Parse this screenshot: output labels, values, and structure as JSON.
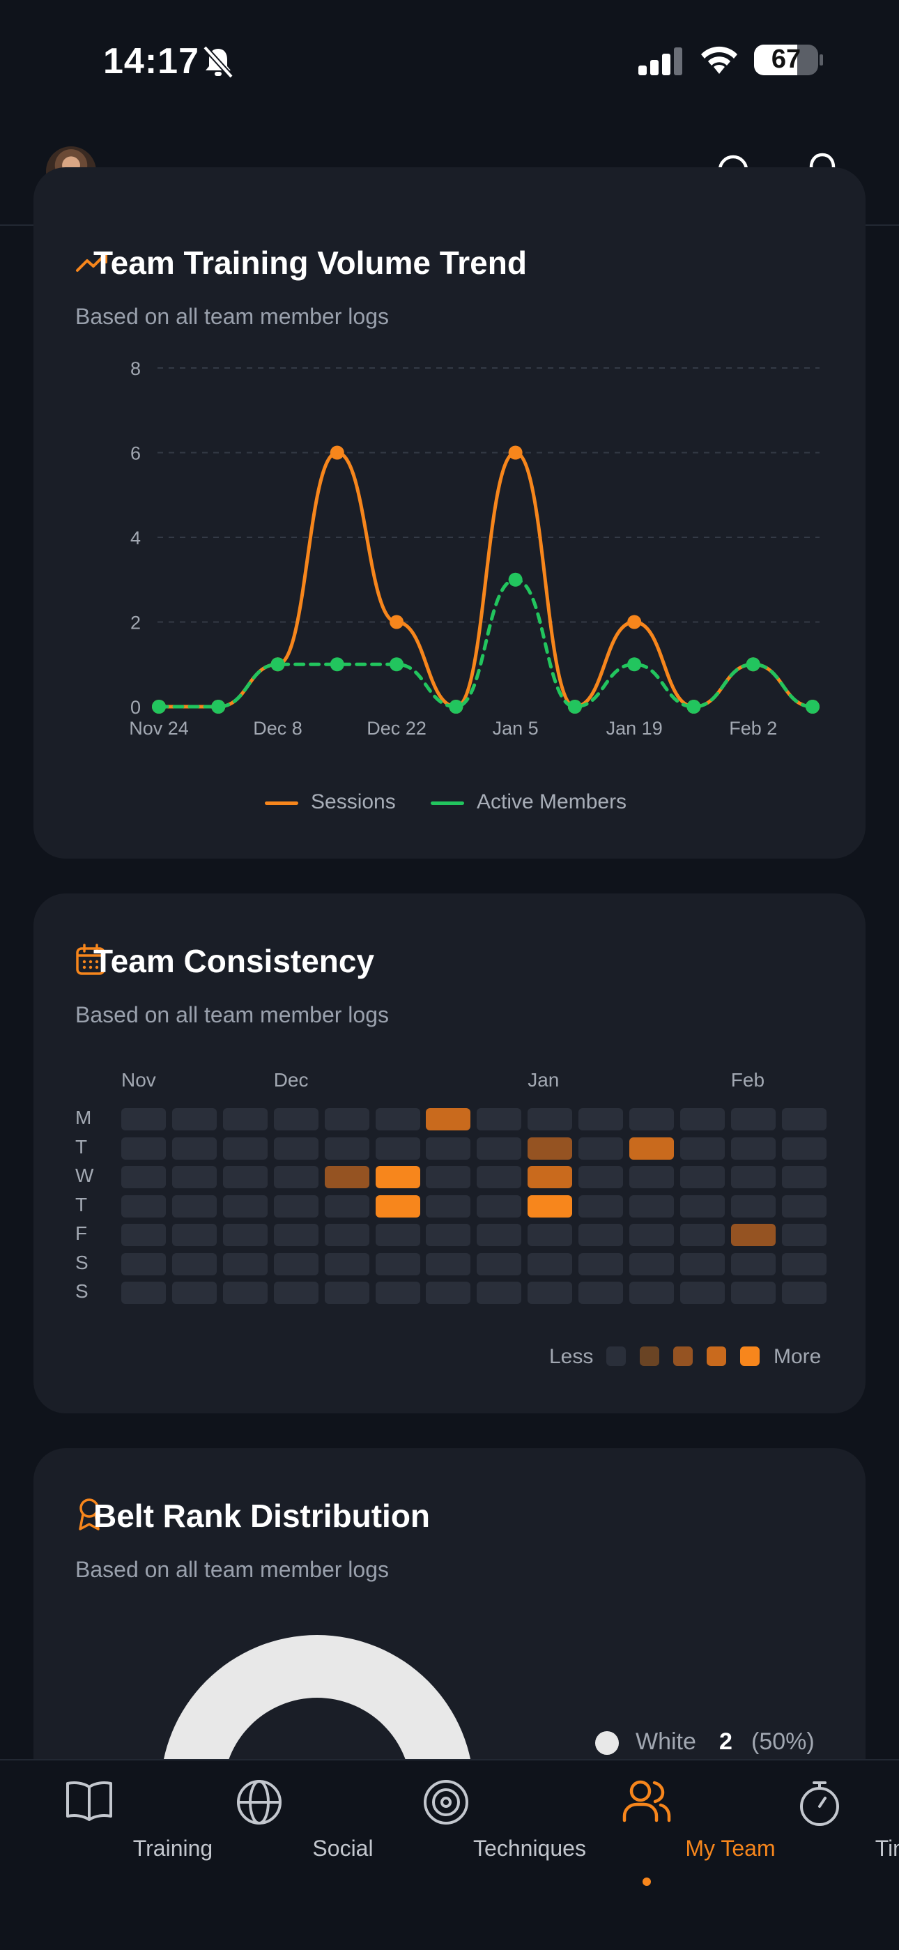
{
  "status_bar": {
    "time": "14:17",
    "battery": "67"
  },
  "header": {
    "avatar": "user-avatar"
  },
  "volume_card": {
    "title": "Team Training Volume Trend",
    "subtitle": "Based on all team member logs",
    "legend": [
      {
        "label": "Sessions",
        "color": "#f7861c"
      },
      {
        "label": "Active Members",
        "color": "#22c55e"
      }
    ]
  },
  "chart_data": {
    "type": "line",
    "x": [
      "Nov 24",
      "",
      "Dec 8",
      "",
      "Dec 22",
      "",
      "Jan 5",
      "",
      "Jan 19",
      "",
      "Feb 2",
      ""
    ],
    "x_tick_labels": [
      "Nov 24",
      "Dec 8",
      "Dec 22",
      "Jan 5",
      "Jan 19",
      "Feb 2"
    ],
    "y_ticks": [
      0,
      2,
      4,
      6,
      8
    ],
    "ylim": [
      0,
      8
    ],
    "grid": true,
    "legend_position": "bottom",
    "series": [
      {
        "name": "Sessions",
        "style": "solid",
        "color": "#f7861c",
        "values": [
          0,
          0,
          1,
          6,
          2,
          0,
          6,
          0,
          2,
          0,
          1,
          0
        ]
      },
      {
        "name": "Active Members",
        "style": "dashed",
        "color": "#22c55e",
        "values": [
          0,
          0,
          1,
          1,
          1,
          0,
          3,
          0,
          1,
          0,
          1,
          0
        ]
      }
    ]
  },
  "consistency_card": {
    "title": "Team Consistency",
    "subtitle": "Based on all team member logs",
    "months": [
      {
        "label": "Nov",
        "col": 0
      },
      {
        "label": "Dec",
        "col": 3
      },
      {
        "label": "Jan",
        "col": 8
      },
      {
        "label": "Feb",
        "col": 12
      }
    ],
    "days": [
      "M",
      "T",
      "W",
      "T",
      "F",
      "S",
      "S"
    ],
    "weeks": 14,
    "active_cells": [
      {
        "row": 0,
        "col": 6,
        "level": 3
      },
      {
        "row": 1,
        "col": 8,
        "level": 2
      },
      {
        "row": 1,
        "col": 10,
        "level": 3
      },
      {
        "row": 2,
        "col": 4,
        "level": 2
      },
      {
        "row": 2,
        "col": 5,
        "level": 4
      },
      {
        "row": 2,
        "col": 8,
        "level": 3
      },
      {
        "row": 3,
        "col": 5,
        "level": 4
      },
      {
        "row": 3,
        "col": 8,
        "level": 4
      },
      {
        "row": 4,
        "col": 12,
        "level": 2
      }
    ],
    "level_colors": [
      "#2a2f3a",
      "#6a4424",
      "#955322",
      "#c96a1d",
      "#f7861c"
    ],
    "less_label": "Less",
    "more_label": "More"
  },
  "belt_card": {
    "title": "Belt Rank Distribution",
    "subtitle": "Based on all team member logs",
    "legend": [
      {
        "label": "White",
        "count": "2",
        "percent": "(50%)",
        "color": "#e8e8e8"
      }
    ]
  },
  "bottom_nav": {
    "items": [
      {
        "label": "Training",
        "icon": "book-icon",
        "active": false
      },
      {
        "label": "Social",
        "icon": "globe-icon",
        "active": false
      },
      {
        "label": "Techniques",
        "icon": "target-icon",
        "active": false
      },
      {
        "label": "My Team",
        "icon": "users-icon",
        "active": true
      },
      {
        "label": "Timer",
        "icon": "stopwatch-icon",
        "active": false
      }
    ],
    "accent": "#f7861c"
  }
}
